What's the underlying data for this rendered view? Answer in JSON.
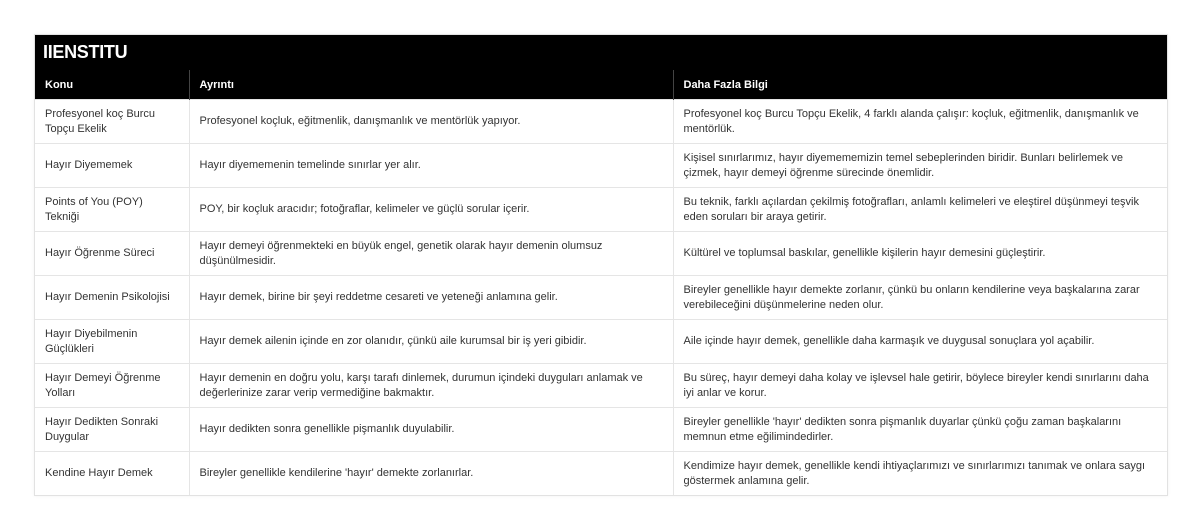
{
  "brand": "IIENSTITU",
  "columns": [
    "Konu",
    "Ayrıntı",
    "Daha Fazla Bilgi"
  ],
  "rows": [
    [
      "Profesyonel koç Burcu Topçu Ekelik",
      "Profesyonel koçluk, eğitmenlik, danışmanlık ve mentörlük yapıyor.",
      "Profesyonel koç Burcu Topçu Ekelik, 4 farklı alanda çalışır: koçluk, eğitmenlik, danışmanlık ve mentörlük."
    ],
    [
      "Hayır Diyememek",
      "Hayır diyememenin temelinde sınırlar yer alır.",
      "Kişisel sınırlarımız, hayır diyemememizin temel sebeplerinden biridir. Bunları belirlemek ve çizmek, hayır demeyi öğrenme sürecinde önemlidir."
    ],
    [
      "Points of You (POY) Tekniği",
      "POY, bir koçluk aracıdır; fotoğraflar, kelimeler ve güçlü sorular içerir.",
      "Bu teknik, farklı açılardan çekilmiş fotoğrafları, anlamlı kelimeleri ve eleştirel düşünmeyi teşvik eden soruları bir araya getirir."
    ],
    [
      "Hayır Öğrenme Süreci",
      "Hayır demeyi öğrenmekteki en büyük engel, genetik olarak hayır demenin olumsuz düşünülmesidir.",
      "Kültürel ve toplumsal baskılar, genellikle kişilerin hayır demesini güçleştirir."
    ],
    [
      "Hayır Demenin Psikolojisi",
      "Hayır demek, birine bir şeyi reddetme cesareti ve yeteneği anlamına gelir.",
      "Bireyler genellikle hayır demekte zorlanır, çünkü bu onların kendilerine veya başkalarına zarar verebileceğini düşünmelerine neden olur."
    ],
    [
      "Hayır Diyebilmenin Güçlükleri",
      "Hayır demek ailenin içinde en zor olanıdır, çünkü aile kurumsal bir iş yeri gibidir.",
      "Aile içinde hayır demek, genellikle daha karmaşık ve duygusal sonuçlara yol açabilir."
    ],
    [
      "Hayır Demeyi Öğrenme Yolları",
      "Hayır demenin en doğru yolu, karşı tarafı dinlemek, durumun içindeki duyguları anlamak ve değerlerinize zarar verip vermediğine bakmaktır.",
      "Bu süreç, hayır demeyi daha kolay ve işlevsel hale getirir, böylece bireyler kendi sınırlarını daha iyi anlar ve korur."
    ],
    [
      "Hayır Dedikten Sonraki Duygular",
      "Hayır dedikten sonra genellikle pişmanlık duyulabilir.",
      "Bireyler genellikle 'hayır' dedikten sonra pişmanlık duyarlar çünkü çoğu zaman başkalarını memnun etme eğilimindedirler."
    ],
    [
      "Kendine Hayır Demek",
      "Bireyler genellikle kendilerine 'hayır' demekte zorlanırlar.",
      "Kendimize hayır demek, genellikle kendi ihtiyaçlarımızı ve sınırlarımızı tanımak ve onlara saygı göstermek anlamına gelir."
    ]
  ]
}
